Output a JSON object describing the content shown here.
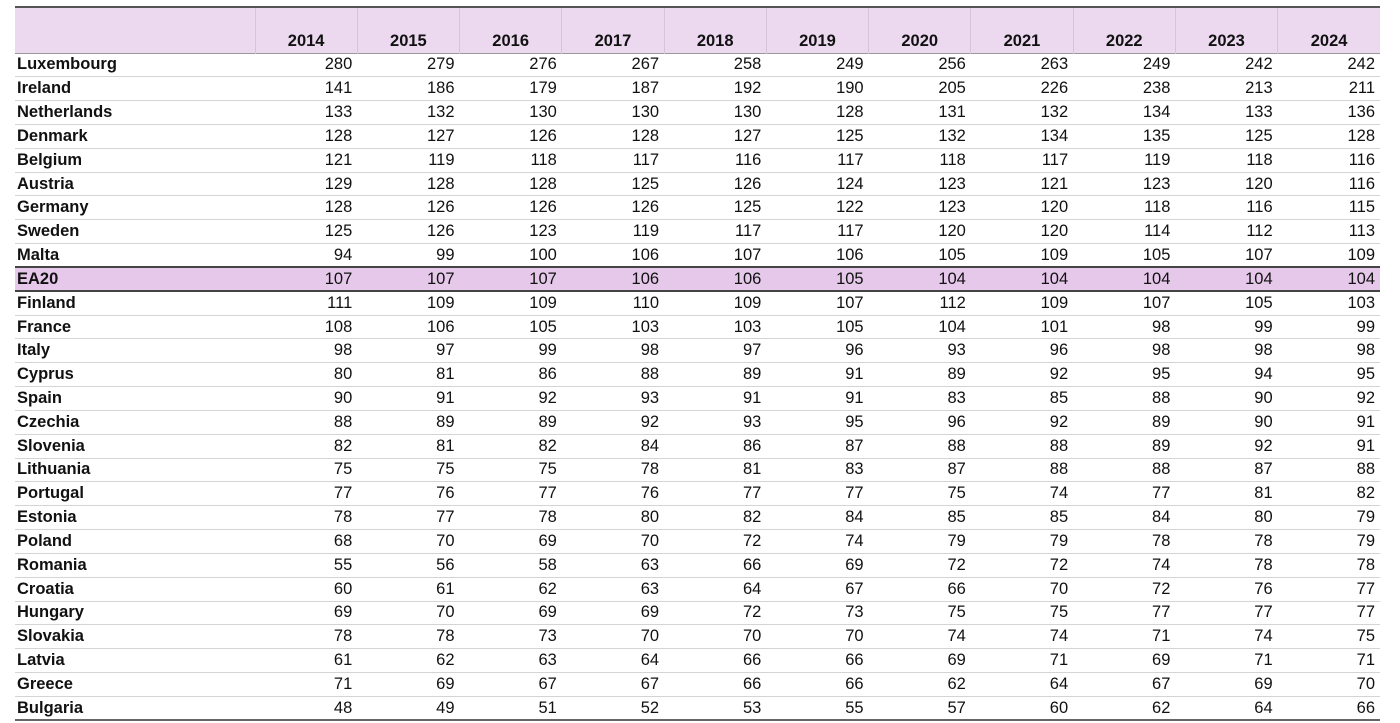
{
  "table": {
    "columns": [
      "2014",
      "2015",
      "2016",
      "2017",
      "2018",
      "2019",
      "2020",
      "2021",
      "2022",
      "2023",
      "2024"
    ],
    "rows": [
      [
        "Luxembourg",
        280,
        279,
        276,
        267,
        258,
        249,
        256,
        263,
        249,
        242,
        242
      ],
      [
        "Ireland",
        141,
        186,
        179,
        187,
        192,
        190,
        205,
        226,
        238,
        213,
        211
      ],
      [
        "Netherlands",
        133,
        132,
        130,
        130,
        130,
        128,
        131,
        132,
        134,
        133,
        136
      ],
      [
        "Denmark",
        128,
        127,
        126,
        128,
        127,
        125,
        132,
        134,
        135,
        125,
        128
      ],
      [
        "Belgium",
        121,
        119,
        118,
        117,
        116,
        117,
        118,
        117,
        119,
        118,
        116
      ],
      [
        "Austria",
        129,
        128,
        128,
        125,
        126,
        124,
        123,
        121,
        123,
        120,
        116
      ],
      [
        "Germany",
        128,
        126,
        126,
        126,
        125,
        122,
        123,
        120,
        118,
        116,
        115
      ],
      [
        "Sweden",
        125,
        126,
        123,
        119,
        117,
        117,
        120,
        120,
        114,
        112,
        113
      ],
      [
        "Malta",
        94,
        99,
        100,
        106,
        107,
        106,
        105,
        109,
        105,
        107,
        109
      ],
      [
        "EA20",
        107,
        107,
        107,
        106,
        106,
        105,
        104,
        104,
        104,
        104,
        104
      ],
      [
        "Finland",
        111,
        109,
        109,
        110,
        109,
        107,
        112,
        109,
        107,
        105,
        103
      ],
      [
        "France",
        108,
        106,
        105,
        103,
        103,
        105,
        104,
        101,
        98,
        99,
        99
      ],
      [
        "Italy",
        98,
        97,
        99,
        98,
        97,
        96,
        93,
        96,
        98,
        98,
        98
      ],
      [
        "Cyprus",
        80,
        81,
        86,
        88,
        89,
        91,
        89,
        92,
        95,
        94,
        95
      ],
      [
        "Spain",
        90,
        91,
        92,
        93,
        91,
        91,
        83,
        85,
        88,
        90,
        92
      ],
      [
        "Czechia",
        88,
        89,
        89,
        92,
        93,
        95,
        96,
        92,
        89,
        90,
        91
      ],
      [
        "Slovenia",
        82,
        81,
        82,
        84,
        86,
        87,
        88,
        88,
        89,
        92,
        91
      ],
      [
        "Lithuania",
        75,
        75,
        75,
        78,
        81,
        83,
        87,
        88,
        88,
        87,
        88
      ],
      [
        "Portugal",
        77,
        76,
        77,
        76,
        77,
        77,
        75,
        74,
        77,
        81,
        82
      ],
      [
        "Estonia",
        78,
        77,
        78,
        80,
        82,
        84,
        85,
        85,
        84,
        80,
        79
      ],
      [
        "Poland",
        68,
        70,
        69,
        70,
        72,
        74,
        79,
        79,
        78,
        78,
        79
      ],
      [
        "Romania",
        55,
        56,
        58,
        63,
        66,
        69,
        72,
        72,
        74,
        78,
        78
      ],
      [
        "Croatia",
        60,
        61,
        62,
        63,
        64,
        67,
        66,
        70,
        72,
        76,
        77
      ],
      [
        "Hungary",
        69,
        70,
        69,
        69,
        72,
        73,
        75,
        75,
        77,
        77,
        77
      ],
      [
        "Slovakia",
        78,
        78,
        73,
        70,
        70,
        70,
        74,
        74,
        71,
        74,
        75
      ],
      [
        "Latvia",
        61,
        62,
        63,
        64,
        66,
        66,
        69,
        71,
        69,
        71,
        71
      ],
      [
        "Greece",
        71,
        69,
        67,
        67,
        66,
        66,
        62,
        64,
        67,
        69,
        70
      ],
      [
        "Bulgaria",
        48,
        49,
        51,
        52,
        53,
        55,
        57,
        60,
        62,
        64,
        66
      ]
    ]
  }
}
